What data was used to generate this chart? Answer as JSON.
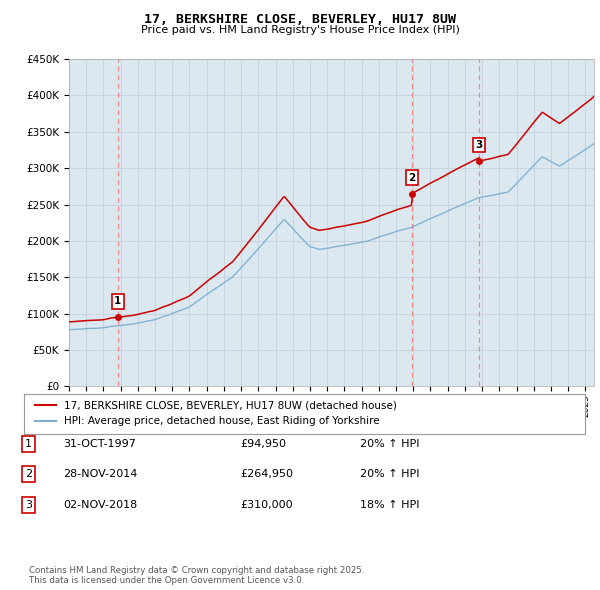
{
  "title": "17, BERKSHIRE CLOSE, BEVERLEY, HU17 8UW",
  "subtitle": "Price paid vs. HM Land Registry's House Price Index (HPI)",
  "legend_label_red": "17, BERKSHIRE CLOSE, BEVERLEY, HU17 8UW (detached house)",
  "legend_label_blue": "HPI: Average price, detached house, East Riding of Yorkshire",
  "footer": "Contains HM Land Registry data © Crown copyright and database right 2025.\nThis data is licensed under the Open Government Licence v3.0.",
  "transactions": [
    {
      "num": 1,
      "date": "31-OCT-1997",
      "price": "£94,950",
      "hpi": "20% ↑ HPI"
    },
    {
      "num": 2,
      "date": "28-NOV-2014",
      "price": "£264,950",
      "hpi": "20% ↑ HPI"
    },
    {
      "num": 3,
      "date": "02-NOV-2018",
      "price": "£310,000",
      "hpi": "18% ↑ HPI"
    }
  ],
  "sale_years": [
    1997.83,
    2014.91,
    2018.84
  ],
  "sale_prices": [
    94950,
    264950,
    310000
  ],
  "sale_premiums": [
    1.2,
    1.2,
    1.18
  ],
  "ylim": [
    0,
    450000
  ],
  "xlim_start": 1995.0,
  "xlim_end": 2025.5,
  "red_color": "#cc0000",
  "blue_color": "#7aadcf",
  "vline_color": "#ee8888",
  "grid_color": "#c8d4e0",
  "background_color": "#dce8f0"
}
